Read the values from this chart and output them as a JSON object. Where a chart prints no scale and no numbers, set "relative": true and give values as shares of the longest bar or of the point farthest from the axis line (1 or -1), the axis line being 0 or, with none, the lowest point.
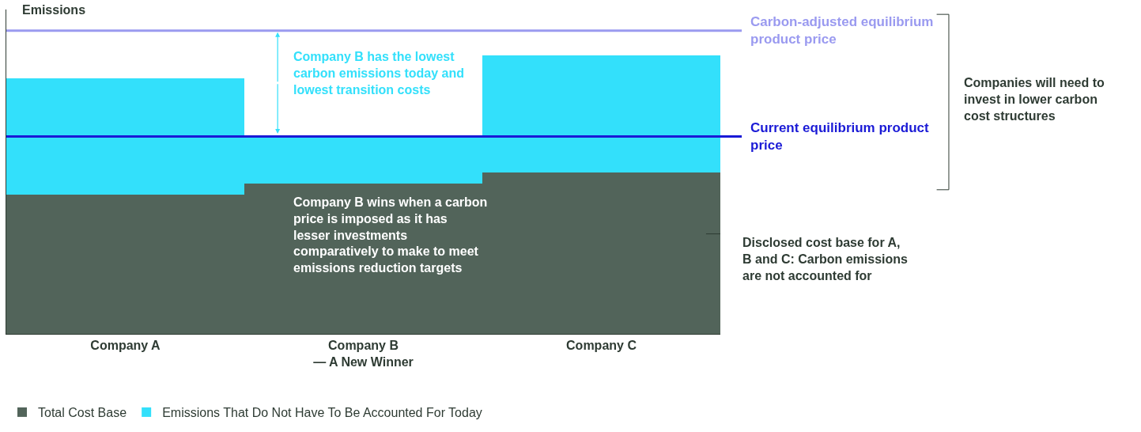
{
  "chart_data": {
    "type": "bar",
    "stacked": true,
    "relative": true,
    "ylabel": "Emissions",
    "categories": [
      "Company A",
      "Company B\n— A New Winner",
      "Company C"
    ],
    "series": [
      {
        "name": "Total Cost Base",
        "color": "#52645a",
        "values": [
          0.5,
          0.54,
          0.58
        ]
      },
      {
        "name": "Emissions That Do Not Have To Be Accounted For Today",
        "color": "#33e0fb",
        "values": [
          0.42,
          0.17,
          0.42
        ]
      }
    ],
    "ref_lines": [
      {
        "axis": "y",
        "value": 1.09,
        "label": "Carbon-adjusted equilibrium product price",
        "color": "#9a9af0"
      },
      {
        "axis": "y",
        "value": 0.71,
        "label": "Current equilibrium product price",
        "color": "#1a1ad6"
      }
    ],
    "annotations": [
      "Company B has the lowest carbon emissions today and lowest transition costs",
      "Company B wins when a carbon price is imposed as it has lesser investments comparatively to make to meet emissions reduction targets",
      "Disclosed cost base for A, B and C: Carbon emissions are not accounted for",
      "Companies will need to invest in lower carbon cost structures"
    ],
    "legend": "bottom left"
  }
}
